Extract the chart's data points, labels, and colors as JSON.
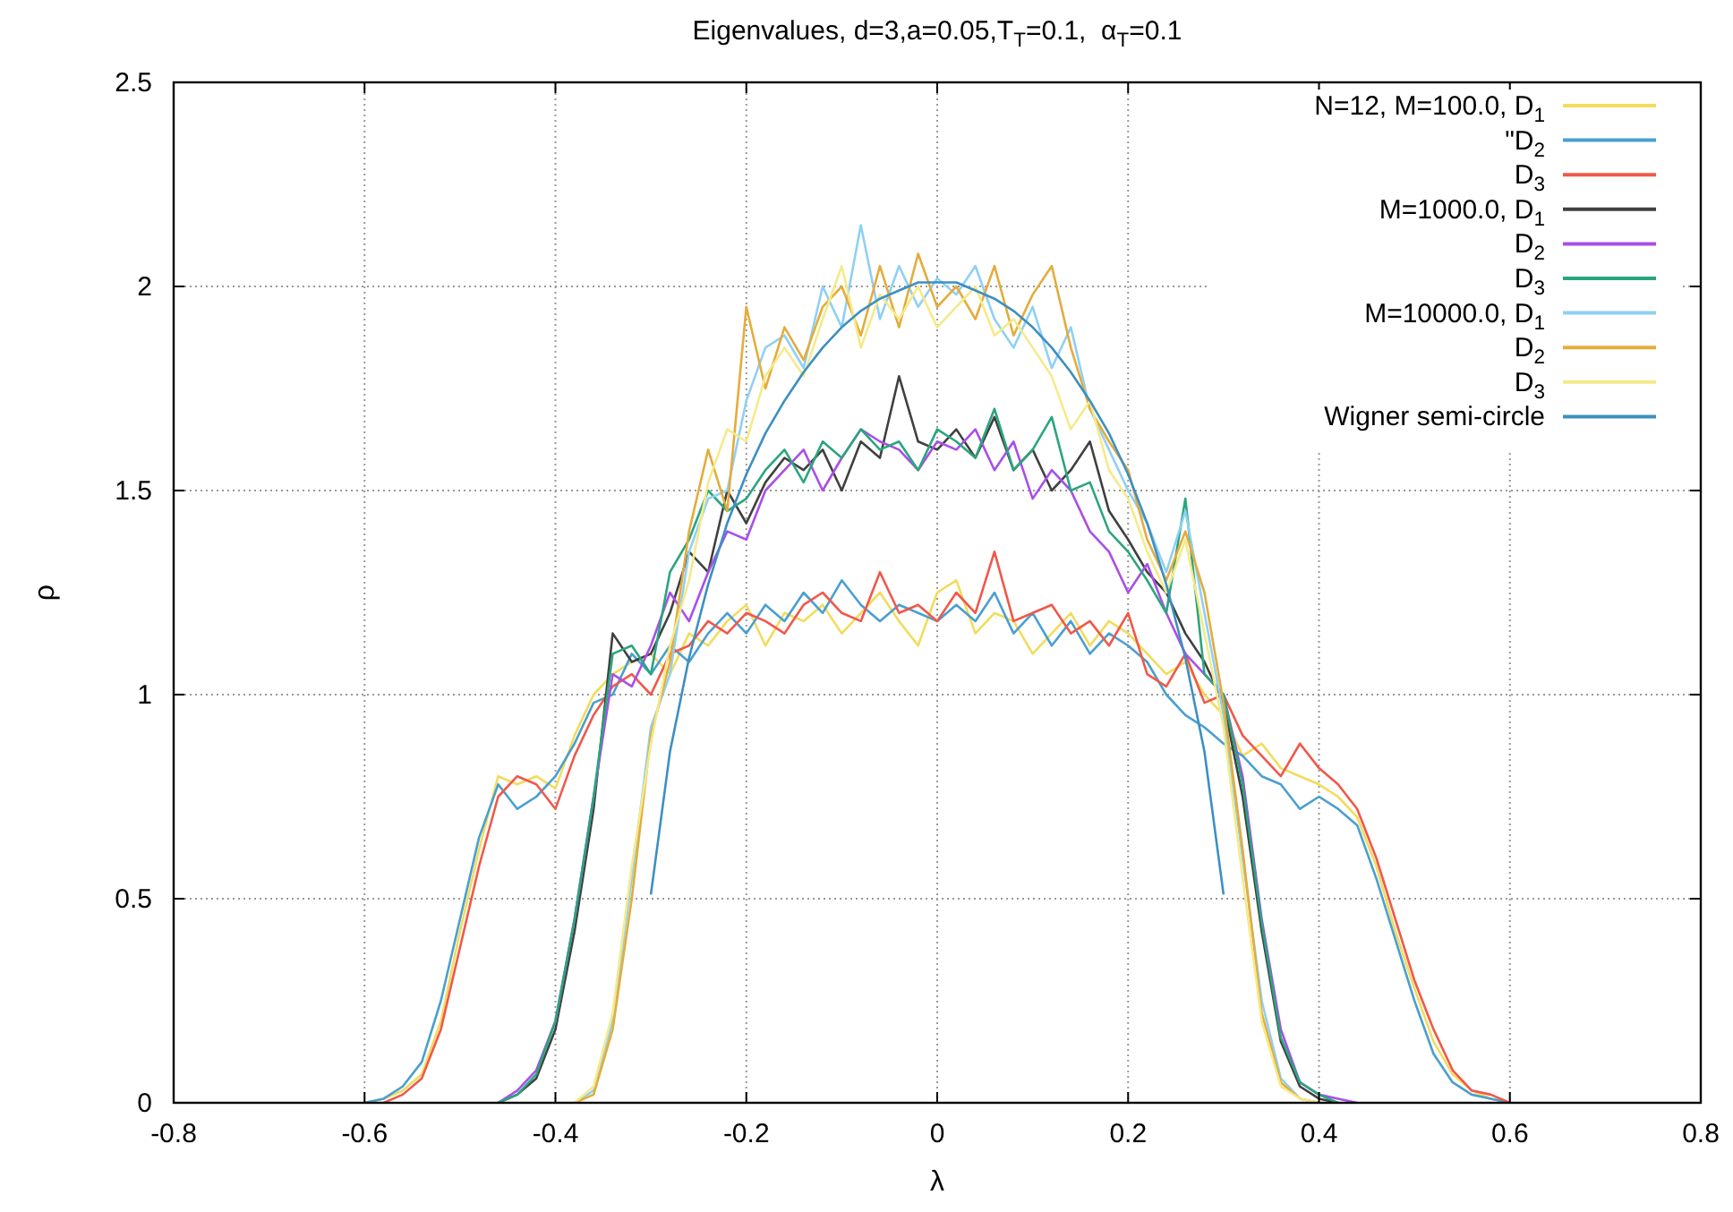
{
  "chart_data": {
    "type": "line",
    "title": "Eigenvalues, d=3,a=0.05,T$_{T}$=0.1,  α$_{T}$=0.1",
    "xlabel": "λ",
    "ylabel": "ρ",
    "x": [
      -0.6,
      -0.58,
      -0.56,
      -0.54,
      -0.52,
      -0.5,
      -0.48,
      -0.46,
      -0.44,
      -0.42,
      -0.4,
      -0.38,
      -0.36,
      -0.34,
      -0.32,
      -0.3,
      -0.28,
      -0.26,
      -0.24,
      -0.22,
      -0.2,
      -0.18,
      -0.16,
      -0.14,
      -0.12,
      -0.1,
      -0.08,
      -0.06,
      -0.04,
      -0.02,
      0,
      0.02,
      0.04,
      0.06,
      0.08,
      0.1,
      0.12,
      0.14,
      0.16,
      0.18,
      0.2,
      0.22,
      0.24,
      0.26,
      0.28,
      0.3,
      0.32,
      0.34,
      0.36,
      0.38,
      0.4,
      0.42,
      0.44,
      0.46,
      0.48,
      0.5,
      0.52,
      0.54,
      0.56,
      0.58,
      0.6
    ],
    "series": [
      {
        "name": "N=12, M=100.0, D$_{1}$",
        "color": "#f2dc5d",
        "values": [
          0,
          0.01,
          0.03,
          0.07,
          0.2,
          0.42,
          0.62,
          0.8,
          0.78,
          0.8,
          0.77,
          0.9,
          1.0,
          1.05,
          1.08,
          1.1,
          1.05,
          1.15,
          1.12,
          1.18,
          1.22,
          1.12,
          1.2,
          1.18,
          1.22,
          1.15,
          1.2,
          1.25,
          1.18,
          1.12,
          1.25,
          1.28,
          1.15,
          1.2,
          1.18,
          1.1,
          1.15,
          1.2,
          1.12,
          1.18,
          1.15,
          1.1,
          1.05,
          1.08,
          1.0,
          0.95,
          0.85,
          0.88,
          0.82,
          0.8,
          0.78,
          0.75,
          0.7,
          0.58,
          0.42,
          0.28,
          0.15,
          0.07,
          0.03,
          0.01,
          0
        ]
      },
      {
        "name": "\"D$_{2}$",
        "color": "#4a9fd0",
        "values": [
          0,
          0.01,
          0.04,
          0.1,
          0.25,
          0.45,
          0.65,
          0.78,
          0.72,
          0.75,
          0.8,
          0.88,
          0.98,
          1.0,
          1.1,
          1.05,
          1.12,
          1.08,
          1.15,
          1.2,
          1.15,
          1.22,
          1.18,
          1.25,
          1.2,
          1.28,
          1.22,
          1.18,
          1.22,
          1.2,
          1.18,
          1.22,
          1.18,
          1.25,
          1.15,
          1.2,
          1.12,
          1.18,
          1.1,
          1.15,
          1.12,
          1.08,
          1.0,
          0.95,
          0.92,
          0.88,
          0.85,
          0.8,
          0.78,
          0.72,
          0.75,
          0.72,
          0.68,
          0.55,
          0.4,
          0.25,
          0.12,
          0.05,
          0.02,
          0.01,
          0
        ]
      },
      {
        "name": "D$_{3}$",
        "color": "#f0584a",
        "values": [
          null,
          0,
          0.02,
          0.06,
          0.18,
          0.38,
          0.58,
          0.75,
          0.8,
          0.78,
          0.72,
          0.85,
          0.95,
          1.02,
          1.05,
          1.0,
          1.1,
          1.12,
          1.18,
          1.15,
          1.2,
          1.18,
          1.15,
          1.22,
          1.25,
          1.2,
          1.18,
          1.3,
          1.2,
          1.22,
          1.18,
          1.25,
          1.2,
          1.35,
          1.18,
          1.2,
          1.22,
          1.15,
          1.18,
          1.12,
          1.2,
          1.05,
          1.02,
          1.1,
          0.98,
          1.0,
          0.9,
          0.85,
          0.8,
          0.88,
          0.82,
          0.78,
          0.72,
          0.6,
          0.45,
          0.3,
          0.18,
          0.08,
          0.03,
          0.02,
          0
        ]
      },
      {
        "name": "M=1000.0, D$_{1}$",
        "color": "#404040",
        "values": [
          null,
          null,
          null,
          null,
          null,
          null,
          null,
          0,
          0.02,
          0.06,
          0.18,
          0.42,
          0.72,
          1.15,
          1.08,
          1.1,
          1.2,
          1.35,
          1.3,
          1.5,
          1.42,
          1.52,
          1.58,
          1.55,
          1.6,
          1.5,
          1.62,
          1.58,
          1.78,
          1.62,
          1.6,
          1.65,
          1.58,
          1.68,
          1.55,
          1.6,
          1.5,
          1.55,
          1.62,
          1.45,
          1.38,
          1.3,
          1.25,
          1.15,
          1.08,
          0.98,
          0.75,
          0.42,
          0.15,
          0.04,
          0.01,
          0,
          null,
          null,
          null,
          null,
          null,
          null,
          null,
          null,
          null
        ]
      },
      {
        "name": "D$_{2}$",
        "color": "#a94fe8",
        "values": [
          null,
          null,
          null,
          null,
          null,
          null,
          null,
          0,
          0.03,
          0.08,
          0.2,
          0.45,
          0.75,
          1.05,
          1.02,
          1.12,
          1.25,
          1.18,
          1.3,
          1.4,
          1.38,
          1.5,
          1.55,
          1.6,
          1.5,
          1.58,
          1.65,
          1.62,
          1.6,
          1.55,
          1.62,
          1.6,
          1.65,
          1.55,
          1.62,
          1.48,
          1.55,
          1.5,
          1.4,
          1.35,
          1.25,
          1.32,
          1.2,
          1.1,
          1.05,
          1.0,
          0.8,
          0.45,
          0.18,
          0.05,
          0.02,
          0.01,
          0,
          null,
          null,
          null,
          null,
          null,
          null,
          null,
          null
        ]
      },
      {
        "name": "D$_{3}$",
        "color": "#2aa57f",
        "values": [
          null,
          null,
          null,
          null,
          null,
          null,
          null,
          0,
          0.02,
          0.07,
          0.2,
          0.45,
          0.75,
          1.1,
          1.12,
          1.05,
          1.3,
          1.38,
          1.5,
          1.45,
          1.48,
          1.55,
          1.6,
          1.52,
          1.62,
          1.58,
          1.65,
          1.6,
          1.62,
          1.55,
          1.65,
          1.62,
          1.58,
          1.7,
          1.55,
          1.6,
          1.68,
          1.5,
          1.52,
          1.4,
          1.35,
          1.28,
          1.2,
          1.48,
          1.05,
          1.0,
          0.78,
          0.44,
          0.16,
          0.05,
          0.02,
          0,
          null,
          null,
          null,
          null,
          null,
          null,
          null,
          null,
          null
        ]
      },
      {
        "name": "M=10000.0, D$_{1}$",
        "color": "#8fd0f5",
        "values": [
          null,
          null,
          null,
          null,
          null,
          null,
          null,
          null,
          null,
          null,
          null,
          0,
          0.03,
          0.2,
          0.55,
          0.92,
          1.05,
          1.35,
          1.48,
          1.5,
          1.72,
          1.85,
          1.88,
          1.8,
          2.0,
          1.9,
          2.15,
          1.92,
          2.05,
          1.95,
          2.02,
          1.98,
          2.05,
          1.92,
          1.85,
          1.95,
          1.8,
          1.9,
          1.7,
          1.6,
          1.5,
          1.42,
          1.3,
          1.45,
          1.2,
          0.95,
          0.6,
          0.25,
          0.06,
          0.01,
          0,
          null,
          null,
          null,
          null,
          null,
          null,
          null,
          null,
          null,
          null
        ]
      },
      {
        "name": "D$_{2}$",
        "color": "#e4ac3c",
        "values": [
          null,
          null,
          null,
          null,
          null,
          null,
          null,
          null,
          null,
          null,
          null,
          0,
          0.02,
          0.18,
          0.5,
          0.9,
          1.08,
          1.4,
          1.6,
          1.45,
          1.95,
          1.75,
          1.9,
          1.82,
          1.95,
          2.0,
          1.88,
          2.05,
          1.9,
          2.08,
          1.95,
          2.0,
          1.92,
          2.05,
          1.88,
          1.98,
          2.05,
          1.85,
          1.7,
          1.62,
          1.55,
          1.38,
          1.28,
          1.4,
          1.25,
          0.98,
          0.62,
          0.22,
          0.05,
          0.01,
          0,
          null,
          null,
          null,
          null,
          null,
          null,
          null,
          null,
          null,
          null
        ]
      },
      {
        "name": "D$_{3}$",
        "color": "#f5ea8a",
        "values": [
          null,
          null,
          null,
          null,
          null,
          null,
          null,
          null,
          null,
          null,
          null,
          0,
          0.04,
          0.22,
          0.58,
          0.88,
          1.12,
          1.28,
          1.52,
          1.65,
          1.62,
          1.78,
          1.85,
          1.78,
          1.92,
          2.05,
          1.85,
          1.98,
          1.92,
          2.0,
          1.9,
          1.95,
          2.0,
          1.88,
          1.92,
          1.85,
          1.78,
          1.65,
          1.72,
          1.55,
          1.48,
          1.35,
          1.25,
          1.38,
          1.15,
          0.92,
          0.55,
          0.2,
          0.04,
          0.01,
          0,
          null,
          null,
          null,
          null,
          null,
          null,
          null,
          null,
          null,
          null
        ]
      },
      {
        "name": "Wigner semi-circle",
        "color": "#3d8fc2",
        "x": [
          -0.3,
          -0.28,
          -0.26,
          -0.24,
          -0.22,
          -0.2,
          -0.18,
          -0.16,
          -0.14,
          -0.12,
          -0.1,
          -0.08,
          -0.06,
          -0.04,
          -0.02,
          0,
          0.02,
          0.04,
          0.06,
          0.08,
          0.1,
          0.12,
          0.14,
          0.16,
          0.18,
          0.2,
          0.22,
          0.24,
          0.26,
          0.28,
          0.3
        ],
        "values": [
          0.51,
          0.86,
          1.09,
          1.27,
          1.42,
          1.54,
          1.64,
          1.72,
          1.79,
          1.85,
          1.9,
          1.94,
          1.97,
          1.99,
          2.01,
          2.01,
          2.01,
          1.99,
          1.97,
          1.94,
          1.9,
          1.85,
          1.79,
          1.72,
          1.64,
          1.54,
          1.42,
          1.27,
          1.09,
          0.86,
          0.51
        ]
      }
    ],
    "xlim": [
      -0.8,
      0.8
    ],
    "xticks": [
      -0.8,
      -0.6,
      -0.4,
      -0.2,
      0,
      0.2,
      0.4,
      0.6,
      0.8
    ],
    "ylim": [
      0,
      2.5
    ],
    "yticks": [
      0,
      0.5,
      1,
      1.5,
      2,
      2.5
    ],
    "grid": true,
    "legend": "top right",
    "marker": "none",
    "line_style": "solid"
  }
}
